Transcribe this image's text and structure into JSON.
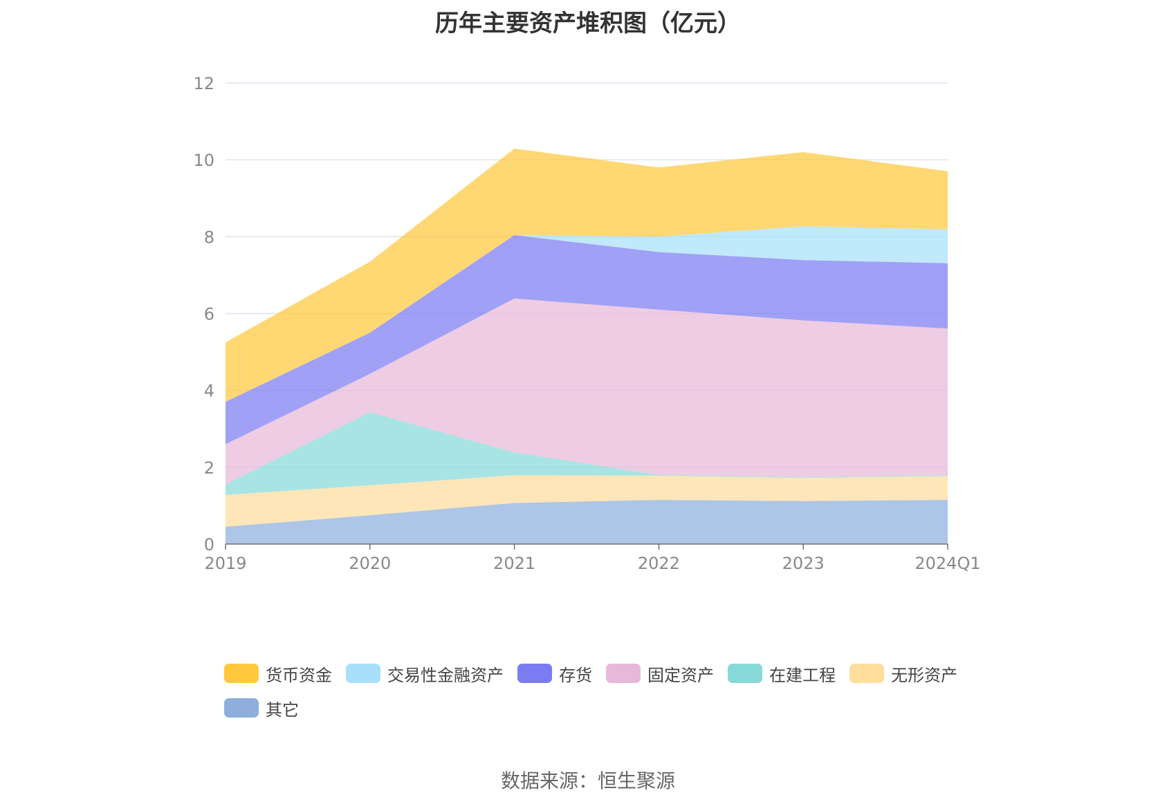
{
  "title": "历年主要资产堆积图（亿元）",
  "source": "数据来源：恒生聚源",
  "chart_data": {
    "type": "area",
    "stacked": true,
    "categories": [
      "2019",
      "2020",
      "2021",
      "2022",
      "2023",
      "2024Q1"
    ],
    "ylim": [
      0,
      12
    ],
    "yticks": [
      0,
      2,
      4,
      6,
      8,
      10,
      12
    ],
    "grid": true,
    "legend_position": "bottom",
    "series": [
      {
        "name": "其它",
        "color": "#8EAFDC",
        "values": [
          0.45,
          0.75,
          1.07,
          1.15,
          1.12,
          1.15
        ]
      },
      {
        "name": "无形资产",
        "color": "#FFDD9C",
        "values": [
          0.83,
          0.78,
          0.72,
          0.63,
          0.6,
          0.62
        ]
      },
      {
        "name": "在建工程",
        "color": "#88D9D9",
        "values": [
          0.27,
          1.9,
          0.6,
          0.02,
          0.02,
          0.02
        ]
      },
      {
        "name": "固定资产",
        "color": "#E8B8D8",
        "values": [
          1.05,
          1.0,
          4.0,
          4.3,
          4.08,
          3.82
        ]
      },
      {
        "name": "存货",
        "color": "#7B7BF2",
        "values": [
          1.1,
          1.07,
          1.65,
          1.5,
          1.57,
          1.7
        ]
      },
      {
        "name": "交易性金融资产",
        "color": "#A8E0FA",
        "values": [
          0.0,
          0.0,
          0.0,
          0.4,
          0.88,
          0.88
        ]
      },
      {
        "name": "货币资金",
        "color": "#FFC83D",
        "values": [
          1.55,
          1.85,
          2.25,
          1.8,
          1.93,
          1.51
        ]
      }
    ],
    "legend_order": [
      "货币资金",
      "交易性金融资产",
      "存货",
      "固定资产",
      "在建工程",
      "无形资产",
      "其它"
    ]
  }
}
